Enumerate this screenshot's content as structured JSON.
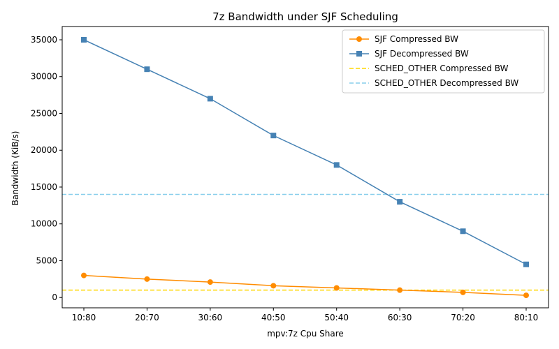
{
  "chart_data": {
    "type": "line",
    "title": "7z Bandwidth under SJF Scheduling",
    "xlabel": "mpv:7z Cpu Share",
    "ylabel": "Bandwidth (KiB/s)",
    "categories": [
      "10:80",
      "20:70",
      "30:60",
      "40:50",
      "50:40",
      "60:30",
      "70:20",
      "80:10"
    ],
    "ylim": [
      -1400,
      36800
    ],
    "yticks": [
      0,
      5000,
      10000,
      15000,
      20000,
      25000,
      30000,
      35000
    ],
    "grid": false,
    "legend_position": "top-right",
    "series": [
      {
        "name": "SJF Compressed BW",
        "color": "#ff8c00",
        "marker": "circle",
        "style": "solid",
        "values": [
          3000,
          2500,
          2100,
          1600,
          1300,
          1000,
          700,
          300
        ]
      },
      {
        "name": "SJF Decompressed BW",
        "color": "#4682b4",
        "marker": "square",
        "style": "solid",
        "values": [
          35000,
          31000,
          27000,
          22000,
          18000,
          13000,
          9000,
          4500
        ]
      }
    ],
    "reference_lines": [
      {
        "name": "SCHED_OTHER Compressed BW",
        "color": "#ffd700",
        "style": "dashed",
        "value": 1000
      },
      {
        "name": "SCHED_OTHER Decompressed BW",
        "color": "#87ceeb",
        "style": "dashed",
        "value": 14000
      }
    ]
  }
}
